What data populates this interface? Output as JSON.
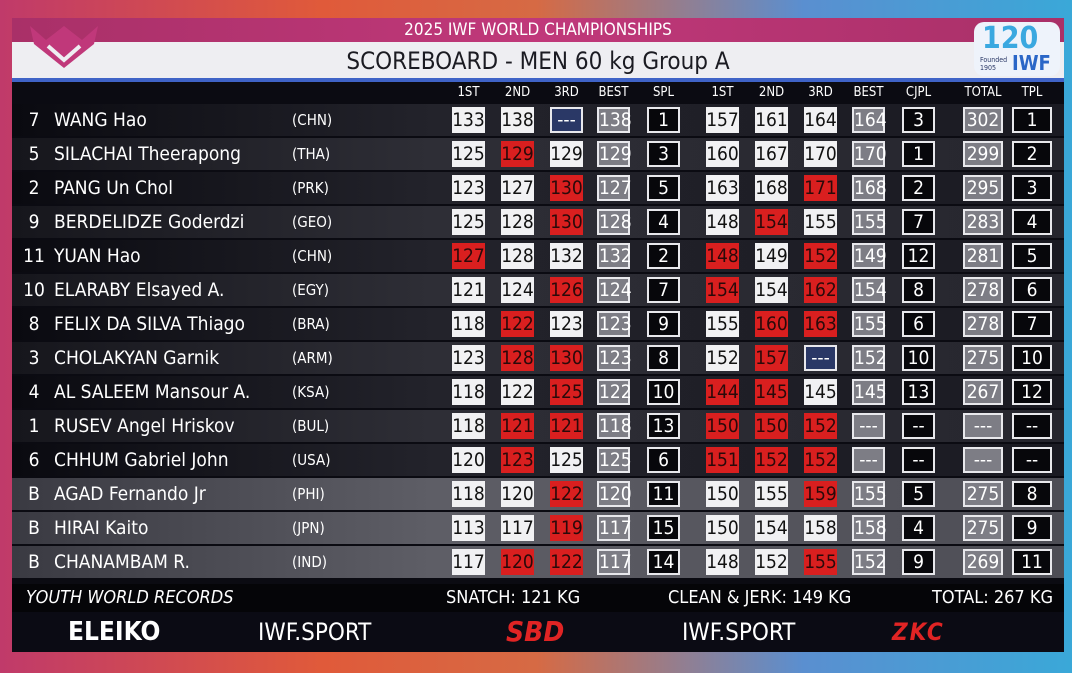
{
  "header": {
    "event": "2025 IWF WORLD CHAMPIONSHIPS",
    "title": "SCOREBOARD - MEN 60 kg Group A",
    "right_logo_number": "120",
    "right_logo_founded": "Founded 1905",
    "right_logo_text": "IWF"
  },
  "columns": [
    "1ST",
    "2ND",
    "3RD",
    "BEST",
    "SPL",
    "1ST",
    "2ND",
    "3RD",
    "BEST",
    "CJPL",
    "TOTAL",
    "TPL"
  ],
  "rows": [
    {
      "lot": "7",
      "name": "WANG Hao",
      "country": "(CHN)",
      "cells": [
        [
          "133",
          "w"
        ],
        [
          "138",
          "w"
        ],
        [
          "---",
          "n"
        ],
        [
          "138",
          "g"
        ],
        [
          "1",
          "b"
        ],
        [
          "157",
          "w"
        ],
        [
          "161",
          "w"
        ],
        [
          "164",
          "w"
        ],
        [
          "164",
          "g"
        ],
        [
          "3",
          "b"
        ],
        [
          "302",
          "g"
        ],
        [
          "1",
          "b"
        ]
      ],
      "band": "even"
    },
    {
      "lot": "5",
      "name": "SILACHAI Theerapong",
      "country": "(THA)",
      "cells": [
        [
          "125",
          "w"
        ],
        [
          "129",
          "r"
        ],
        [
          "129",
          "w"
        ],
        [
          "129",
          "g"
        ],
        [
          "3",
          "b"
        ],
        [
          "160",
          "w"
        ],
        [
          "167",
          "w"
        ],
        [
          "170",
          "w"
        ],
        [
          "170",
          "g"
        ],
        [
          "1",
          "b"
        ],
        [
          "299",
          "g"
        ],
        [
          "2",
          "b"
        ]
      ],
      "band": "odd"
    },
    {
      "lot": "2",
      "name": "PANG Un Chol",
      "country": "(PRK)",
      "cells": [
        [
          "123",
          "w"
        ],
        [
          "127",
          "w"
        ],
        [
          "130",
          "r"
        ],
        [
          "127",
          "g"
        ],
        [
          "5",
          "b"
        ],
        [
          "163",
          "w"
        ],
        [
          "168",
          "w"
        ],
        [
          "171",
          "r"
        ],
        [
          "168",
          "g"
        ],
        [
          "2",
          "b"
        ],
        [
          "295",
          "g"
        ],
        [
          "3",
          "b"
        ]
      ],
      "band": "even"
    },
    {
      "lot": "9",
      "name": "BERDELIDZE Goderdzi",
      "country": "(GEO)",
      "cells": [
        [
          "125",
          "w"
        ],
        [
          "128",
          "w"
        ],
        [
          "130",
          "r"
        ],
        [
          "128",
          "g"
        ],
        [
          "4",
          "b"
        ],
        [
          "148",
          "w"
        ],
        [
          "154",
          "r"
        ],
        [
          "155",
          "w"
        ],
        [
          "155",
          "g"
        ],
        [
          "7",
          "b"
        ],
        [
          "283",
          "g"
        ],
        [
          "4",
          "b"
        ]
      ],
      "band": "odd"
    },
    {
      "lot": "11",
      "name": "YUAN Hao",
      "country": "(CHN)",
      "cells": [
        [
          "127",
          "r"
        ],
        [
          "128",
          "w"
        ],
        [
          "132",
          "w"
        ],
        [
          "132",
          "g"
        ],
        [
          "2",
          "b"
        ],
        [
          "148",
          "r"
        ],
        [
          "149",
          "w"
        ],
        [
          "152",
          "r"
        ],
        [
          "149",
          "g"
        ],
        [
          "12",
          "b"
        ],
        [
          "281",
          "g"
        ],
        [
          "5",
          "b"
        ]
      ],
      "band": "even"
    },
    {
      "lot": "10",
      "name": "ELARABY Elsayed A.",
      "country": "(EGY)",
      "cells": [
        [
          "121",
          "w"
        ],
        [
          "124",
          "w"
        ],
        [
          "126",
          "r"
        ],
        [
          "124",
          "g"
        ],
        [
          "7",
          "b"
        ],
        [
          "154",
          "r"
        ],
        [
          "154",
          "w"
        ],
        [
          "162",
          "r"
        ],
        [
          "154",
          "g"
        ],
        [
          "8",
          "b"
        ],
        [
          "278",
          "g"
        ],
        [
          "6",
          "b"
        ]
      ],
      "band": "odd"
    },
    {
      "lot": "8",
      "name": "FELIX DA SILVA Thiago",
      "country": "(BRA)",
      "cells": [
        [
          "118",
          "w"
        ],
        [
          "122",
          "r"
        ],
        [
          "123",
          "w"
        ],
        [
          "123",
          "g"
        ],
        [
          "9",
          "b"
        ],
        [
          "155",
          "w"
        ],
        [
          "160",
          "r"
        ],
        [
          "163",
          "r"
        ],
        [
          "155",
          "g"
        ],
        [
          "6",
          "b"
        ],
        [
          "278",
          "g"
        ],
        [
          "7",
          "b"
        ]
      ],
      "band": "even"
    },
    {
      "lot": "3",
      "name": "CHOLAKYAN Garnik",
      "country": "(ARM)",
      "cells": [
        [
          "123",
          "w"
        ],
        [
          "128",
          "r"
        ],
        [
          "130",
          "r"
        ],
        [
          "123",
          "g"
        ],
        [
          "8",
          "b"
        ],
        [
          "152",
          "w"
        ],
        [
          "157",
          "r"
        ],
        [
          "---",
          "n"
        ],
        [
          "152",
          "g"
        ],
        [
          "10",
          "b"
        ],
        [
          "275",
          "g"
        ],
        [
          "10",
          "b"
        ]
      ],
      "band": "odd"
    },
    {
      "lot": "4",
      "name": "AL SALEEM Mansour A.",
      "country": "(KSA)",
      "cells": [
        [
          "118",
          "w"
        ],
        [
          "122",
          "w"
        ],
        [
          "125",
          "r"
        ],
        [
          "122",
          "g"
        ],
        [
          "10",
          "b"
        ],
        [
          "144",
          "r"
        ],
        [
          "145",
          "r"
        ],
        [
          "145",
          "w"
        ],
        [
          "145",
          "g"
        ],
        [
          "13",
          "b"
        ],
        [
          "267",
          "g"
        ],
        [
          "12",
          "b"
        ]
      ],
      "band": "even"
    },
    {
      "lot": "1",
      "name": "RUSEV Angel Hriskov",
      "country": "(BUL)",
      "cells": [
        [
          "118",
          "w"
        ],
        [
          "121",
          "r"
        ],
        [
          "121",
          "r"
        ],
        [
          "118",
          "g"
        ],
        [
          "13",
          "b"
        ],
        [
          "150",
          "r"
        ],
        [
          "150",
          "r"
        ],
        [
          "152",
          "r"
        ],
        [
          "---",
          "g"
        ],
        [
          "--",
          "b"
        ],
        [
          "---",
          "g"
        ],
        [
          "--",
          "b"
        ]
      ],
      "band": "odd"
    },
    {
      "lot": "6",
      "name": "CHHUM Gabriel John",
      "country": "(USA)",
      "cells": [
        [
          "120",
          "w"
        ],
        [
          "123",
          "r"
        ],
        [
          "125",
          "w"
        ],
        [
          "125",
          "g"
        ],
        [
          "6",
          "b"
        ],
        [
          "151",
          "r"
        ],
        [
          "152",
          "r"
        ],
        [
          "152",
          "r"
        ],
        [
          "---",
          "g"
        ],
        [
          "--",
          "b"
        ],
        [
          "---",
          "g"
        ],
        [
          "--",
          "b"
        ]
      ],
      "band": "even"
    },
    {
      "lot": "B",
      "name": "AGAD Fernando Jr",
      "country": "(PHI)",
      "cells": [
        [
          "118",
          "w"
        ],
        [
          "120",
          "w"
        ],
        [
          "122",
          "r"
        ],
        [
          "120",
          "g"
        ],
        [
          "11",
          "b"
        ],
        [
          "150",
          "w"
        ],
        [
          "155",
          "w"
        ],
        [
          "159",
          "r"
        ],
        [
          "155",
          "g"
        ],
        [
          "5",
          "b"
        ],
        [
          "275",
          "g"
        ],
        [
          "8",
          "b"
        ]
      ],
      "band": "sub"
    },
    {
      "lot": "B",
      "name": "HIRAI Kaito",
      "country": "(JPN)",
      "cells": [
        [
          "113",
          "w"
        ],
        [
          "117",
          "w"
        ],
        [
          "119",
          "r"
        ],
        [
          "117",
          "g"
        ],
        [
          "15",
          "b"
        ],
        [
          "150",
          "w"
        ],
        [
          "154",
          "w"
        ],
        [
          "158",
          "w"
        ],
        [
          "158",
          "g"
        ],
        [
          "4",
          "b"
        ],
        [
          "275",
          "g"
        ],
        [
          "9",
          "b"
        ]
      ],
      "band": "sub"
    },
    {
      "lot": "B",
      "name": "CHANAMBAM R.",
      "country": "(IND)",
      "cells": [
        [
          "117",
          "w"
        ],
        [
          "120",
          "r"
        ],
        [
          "122",
          "r"
        ],
        [
          "117",
          "g"
        ],
        [
          "14",
          "b"
        ],
        [
          "148",
          "w"
        ],
        [
          "152",
          "w"
        ],
        [
          "155",
          "r"
        ],
        [
          "152",
          "g"
        ],
        [
          "9",
          "b"
        ],
        [
          "269",
          "g"
        ],
        [
          "11",
          "b"
        ]
      ],
      "band": "sub"
    }
  ],
  "records": {
    "label": "YOUTH WORLD RECORDS",
    "snatch": "SNATCH: 121 KG",
    "cj": "CLEAN & JERK: 149 KG",
    "total": "TOTAL: 267 KG"
  },
  "sponsors": [
    "ELEIKO",
    "IWF.SPORT",
    "SBD",
    "IWF.SPORT",
    "ZKC"
  ],
  "colors": {
    "magenta": "#b8336f",
    "red": "#d91f1f",
    "blue": "#3f63c7"
  }
}
